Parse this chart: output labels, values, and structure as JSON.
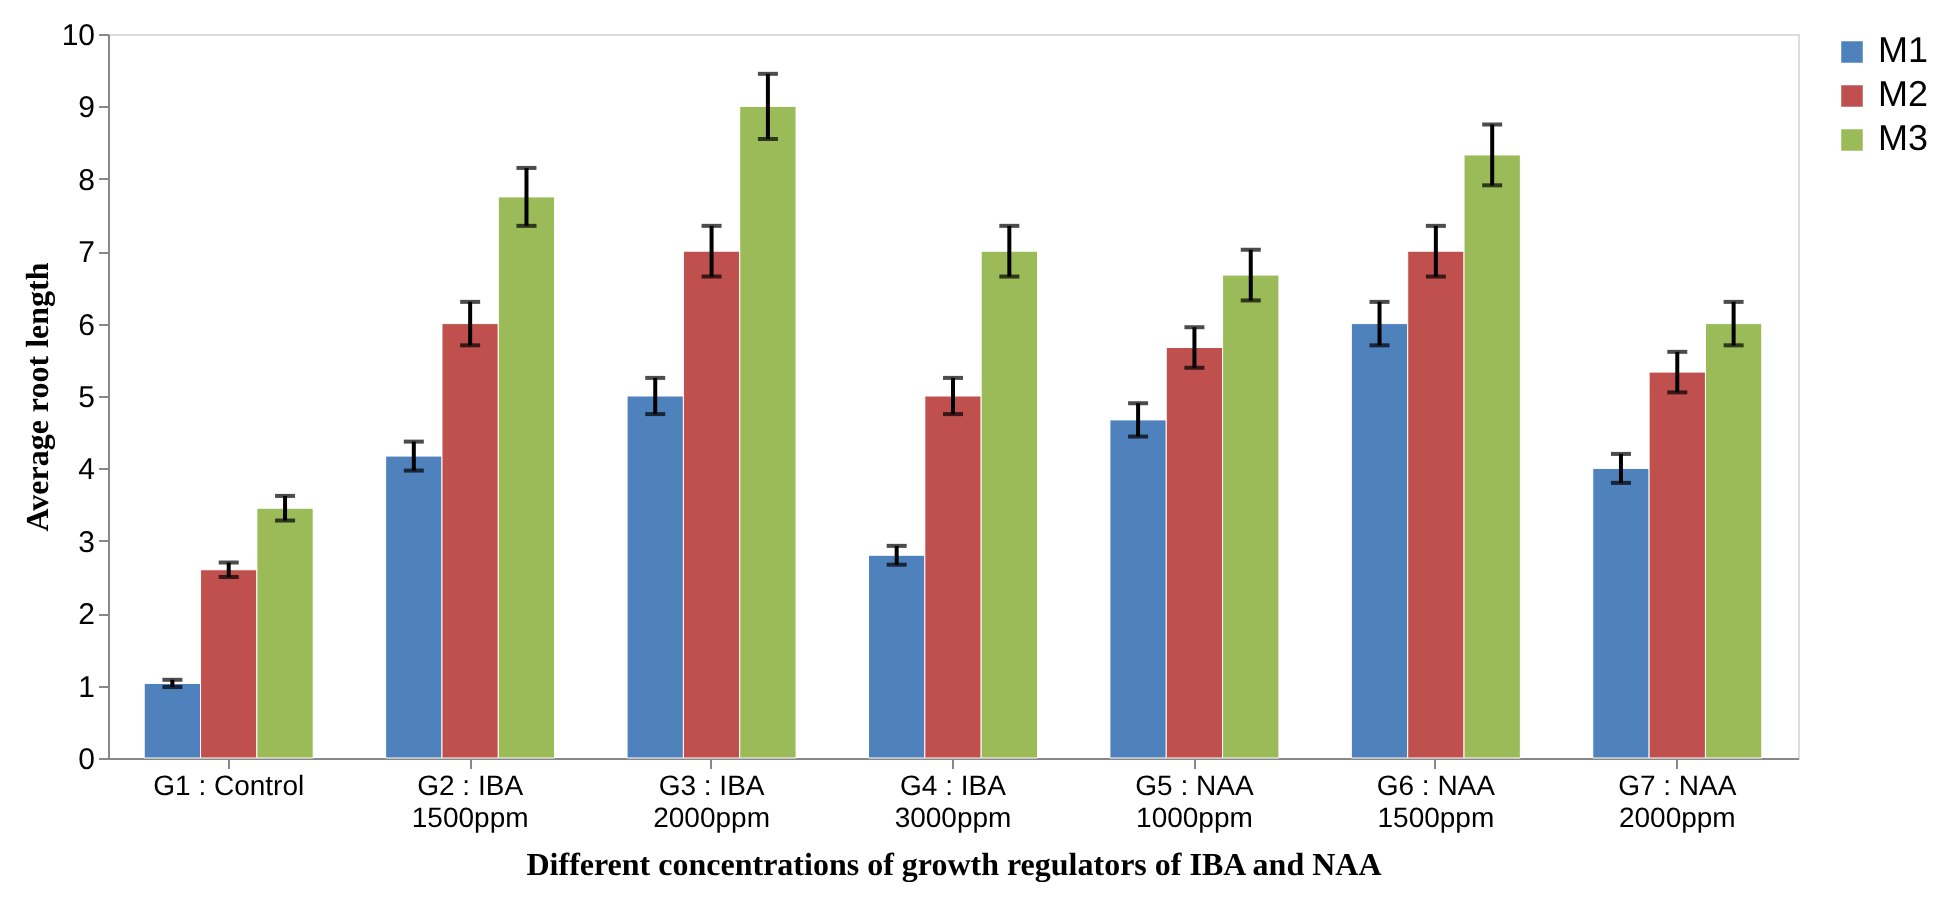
{
  "chart_data": {
    "type": "bar",
    "xlabel": "Different concentrations of growth regulators of IBA and NAA",
    "ylabel": "Average root length",
    "categories": [
      "G1 : Control",
      "G2 : IBA\n1500ppm",
      "G3 : IBA\n2000ppm",
      "G4 : IBA\n3000ppm",
      "G5 : NAA\n1000ppm",
      "G6 : NAA\n1500ppm",
      "G7 :  NAA\n2000ppm"
    ],
    "series": [
      {
        "name": "M1",
        "color": "#4f81bd",
        "values": [
          1.03,
          4.17,
          5.0,
          2.8,
          4.67,
          6.0,
          4.0
        ],
        "errors": [
          0.05,
          0.2,
          0.25,
          0.13,
          0.23,
          0.3,
          0.2
        ]
      },
      {
        "name": "M2",
        "color": "#c0504d",
        "values": [
          2.6,
          6.0,
          7.0,
          5.0,
          5.67,
          7.0,
          5.33
        ],
        "errors": [
          0.1,
          0.3,
          0.35,
          0.25,
          0.28,
          0.35,
          0.28
        ]
      },
      {
        "name": "M3",
        "color": "#9bbb59",
        "values": [
          3.45,
          7.75,
          9.0,
          7.0,
          6.67,
          8.33,
          6.0
        ],
        "errors": [
          0.17,
          0.4,
          0.45,
          0.35,
          0.35,
          0.42,
          0.3
        ]
      }
    ],
    "ylim": [
      0,
      10
    ],
    "yticks": [
      0,
      1,
      2,
      3,
      4,
      5,
      6,
      7,
      8,
      9,
      10
    ],
    "grid": false,
    "legend": "right"
  }
}
